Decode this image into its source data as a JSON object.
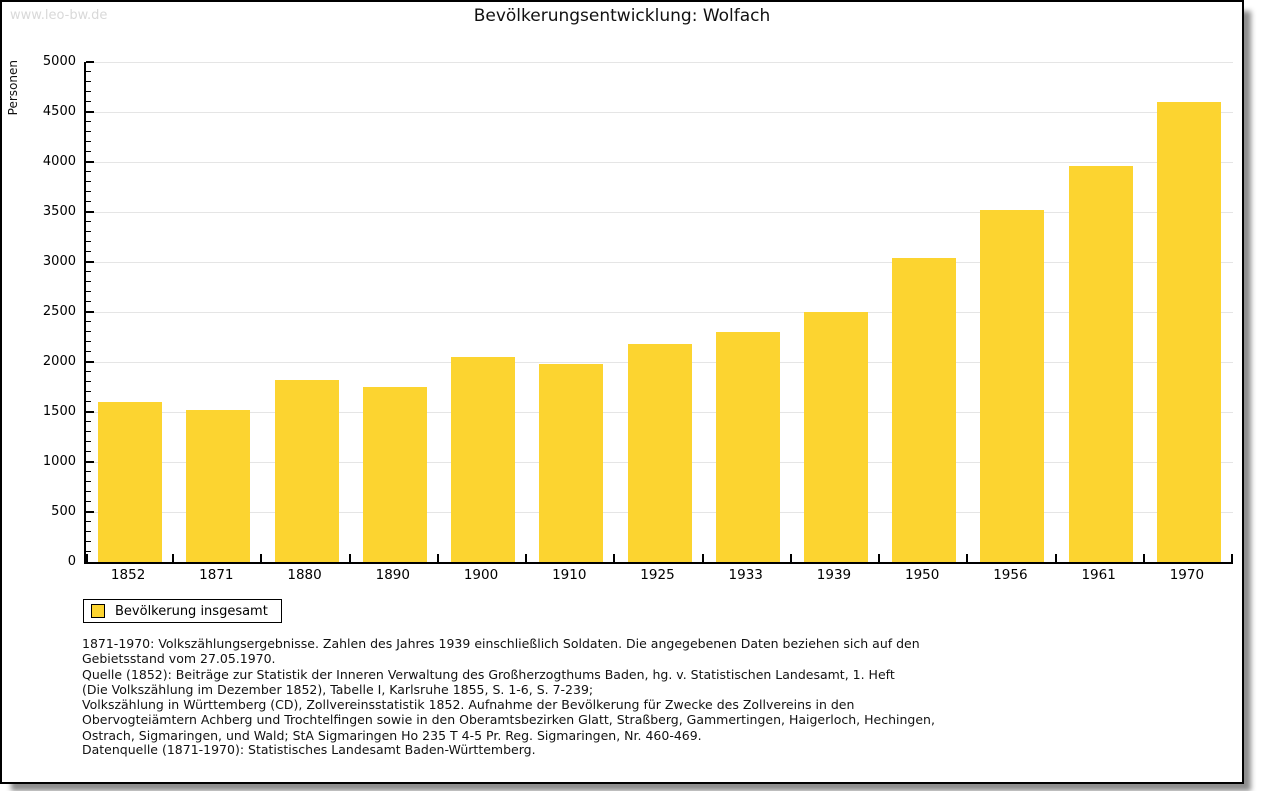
{
  "header": {
    "watermark": "www.leo-bw.de",
    "title": "Bevölkerungsentwicklung: Wolfach"
  },
  "chart_data": {
    "type": "bar",
    "title": "Bevölkerungsentwicklung: Wolfach",
    "categories": [
      "1852",
      "1871",
      "1880",
      "1890",
      "1900",
      "1910",
      "1925",
      "1933",
      "1939",
      "1950",
      "1956",
      "1961",
      "1970"
    ],
    "values": [
      1600,
      1520,
      1820,
      1750,
      2050,
      1980,
      2180,
      2300,
      2500,
      3040,
      3520,
      3960,
      4600
    ],
    "series_name": "Bevölkerung insgesamt",
    "xlabel": "",
    "ylabel": "Personen",
    "ylim": [
      0,
      5000
    ],
    "ytick_major": 500,
    "ytick_minor": 100,
    "grid": true,
    "bar_color": "#fcd430",
    "legend_position": "bottom-left"
  },
  "legend": {
    "label": "Bevölkerung insgesamt",
    "swatch_color": "#fcd430"
  },
  "footnotes": {
    "block1": "1871-1970: Volkszählungsergebnisse. Zahlen des Jahres 1939 einschließlich Soldaten. Die angegebenen Daten beziehen sich auf den\nGebietsstand vom 27.05.1970.\nQuelle (1852): Beiträge zur Statistik der Inneren Verwaltung des Großherzogthums Baden, hg. v. Statistischen Landesamt, 1. Heft\n(Die Volkszählung im Dezember 1852), Tabelle I, Karlsruhe 1855, S. 1-6, S. 7-239;\nVolkszählung in Württemberg (CD), Zollvereinsstatistik 1852. Aufnahme der Bevölkerung für Zwecke des Zollvereins in den\nObervogteiämtern Achberg und Trochtelfingen sowie in den Oberamtsbezirken Glatt, Straßberg, Gammertingen, Haigerloch, Hechingen,\nOstrach, Sigmaringen, und Wald; StA Sigmaringen Ho 235 T 4-5 Pr. Reg. Sigmaringen, Nr. 460-469.",
    "block2": "Datenquelle (1871-1970): Statistisches Landesamt Baden-Württemberg."
  }
}
